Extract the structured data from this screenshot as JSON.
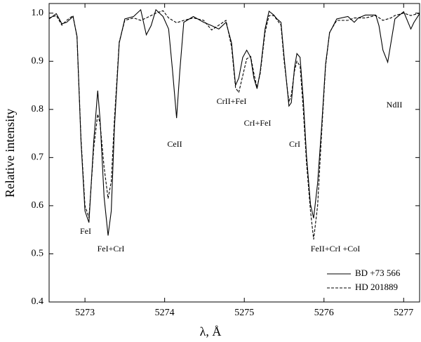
{
  "chart_data": {
    "type": "line",
    "x_label": "λ, Å",
    "y_label": "Relative intensity",
    "xlim": [
      5272.55,
      5277.2
    ],
    "ylim": [
      0.4,
      1.02
    ],
    "xticks": [
      5273,
      5274,
      5275,
      5276,
      5277
    ],
    "yticks": [
      0.4,
      0.5,
      0.6,
      0.7,
      0.8,
      0.9,
      {
        "value": 1,
        "label": "1.0"
      }
    ],
    "grid": false,
    "legend": "lower right",
    "series": [
      {
        "name": "BD +73 566",
        "color": "#000000",
        "linestyle": "solid",
        "x": [
          5272.55,
          5272.64,
          5272.71,
          5272.77,
          5272.85,
          5272.9,
          5272.95,
          5273.0,
          5273.05,
          5273.11,
          5273.16,
          5273.19,
          5273.24,
          5273.29,
          5273.33,
          5273.37,
          5273.43,
          5273.5,
          5273.61,
          5273.7,
          5273.77,
          5273.83,
          5273.89,
          5273.98,
          5274.05,
          5274.1,
          5274.15,
          5274.19,
          5274.24,
          5274.36,
          5274.49,
          5274.59,
          5274.68,
          5274.77,
          5274.84,
          5274.89,
          5274.93,
          5274.98,
          5275.03,
          5275.08,
          5275.12,
          5275.16,
          5275.2,
          5275.26,
          5275.31,
          5275.37,
          5275.41,
          5275.46,
          5275.5,
          5275.56,
          5275.59,
          5275.63,
          5275.66,
          5275.7,
          5275.74,
          5275.78,
          5275.83,
          5275.87,
          5275.92,
          5275.97,
          5276.02,
          5276.07,
          5276.16,
          5276.3,
          5276.38,
          5276.43,
          5276.52,
          5276.65,
          5276.69,
          5276.74,
          5276.8,
          5276.84,
          5276.89,
          5277.0,
          5277.09,
          5277.13,
          5277.2
        ],
        "values": [
          0.988,
          0.999,
          0.978,
          0.981,
          0.993,
          0.952,
          0.734,
          0.589,
          0.565,
          0.734,
          0.839,
          0.778,
          0.618,
          0.538,
          0.589,
          0.763,
          0.938,
          0.988,
          0.993,
          1.007,
          0.955,
          0.974,
          1.007,
          0.993,
          0.967,
          0.879,
          0.782,
          0.879,
          0.981,
          0.993,
          0.981,
          0.974,
          0.967,
          0.981,
          0.938,
          0.85,
          0.865,
          0.908,
          0.923,
          0.908,
          0.865,
          0.843,
          0.879,
          0.967,
          1.004,
          0.996,
          0.988,
          0.981,
          0.908,
          0.807,
          0.814,
          0.887,
          0.916,
          0.908,
          0.821,
          0.705,
          0.603,
          0.574,
          0.647,
          0.763,
          0.894,
          0.959,
          0.988,
          0.993,
          0.981,
          0.99,
          0.996,
          0.996,
          0.974,
          0.923,
          0.898,
          0.938,
          0.988,
          1.003,
          0.967,
          0.981,
          0.999
        ]
      },
      {
        "name": "HD 201889",
        "color": "#000000",
        "linestyle": "dashed",
        "x": [
          5272.55,
          5272.64,
          5272.71,
          5272.77,
          5272.85,
          5272.9,
          5272.95,
          5273.0,
          5273.05,
          5273.11,
          5273.16,
          5273.19,
          5273.24,
          5273.29,
          5273.33,
          5273.37,
          5273.43,
          5273.5,
          5273.61,
          5273.7,
          5273.77,
          5273.83,
          5273.89,
          5273.98,
          5274.05,
          5274.15,
          5274.24,
          5274.36,
          5274.49,
          5274.59,
          5274.68,
          5274.77,
          5274.84,
          5274.89,
          5274.93,
          5274.98,
          5275.03,
          5275.08,
          5275.12,
          5275.16,
          5275.2,
          5275.26,
          5275.31,
          5275.37,
          5275.46,
          5275.5,
          5275.56,
          5275.59,
          5275.63,
          5275.66,
          5275.7,
          5275.74,
          5275.78,
          5275.83,
          5275.87,
          5275.92,
          5275.97,
          5276.02,
          5276.07,
          5276.16,
          5276.3,
          5276.38,
          5276.52,
          5276.65,
          5276.74,
          5276.84,
          5276.89,
          5277.0,
          5277.09,
          5277.2
        ],
        "values": [
          0.99,
          0.995,
          0.975,
          0.985,
          0.995,
          0.95,
          0.74,
          0.6,
          0.575,
          0.72,
          0.79,
          0.77,
          0.68,
          0.615,
          0.65,
          0.78,
          0.94,
          0.985,
          0.99,
          0.985,
          0.99,
          0.995,
          1.0,
          1.005,
          0.99,
          0.98,
          0.985,
          0.99,
          0.985,
          0.965,
          0.975,
          0.985,
          0.93,
          0.845,
          0.835,
          0.87,
          0.905,
          0.91,
          0.875,
          0.845,
          0.875,
          0.96,
          0.995,
          0.995,
          0.975,
          0.9,
          0.815,
          0.83,
          0.88,
          0.9,
          0.89,
          0.8,
          0.69,
          0.59,
          0.53,
          0.6,
          0.75,
          0.89,
          0.96,
          0.985,
          0.985,
          0.99,
          0.99,
          0.995,
          0.985,
          0.99,
          0.995,
          1.0,
          0.995,
          1.0
        ]
      }
    ],
    "annotations": [
      "FeI",
      "FeI+CrI",
      "CeII",
      "CrII+FeI",
      "CrI+FeI",
      "CrI",
      "FeII+CrI +CoI",
      "NdII"
    ]
  }
}
